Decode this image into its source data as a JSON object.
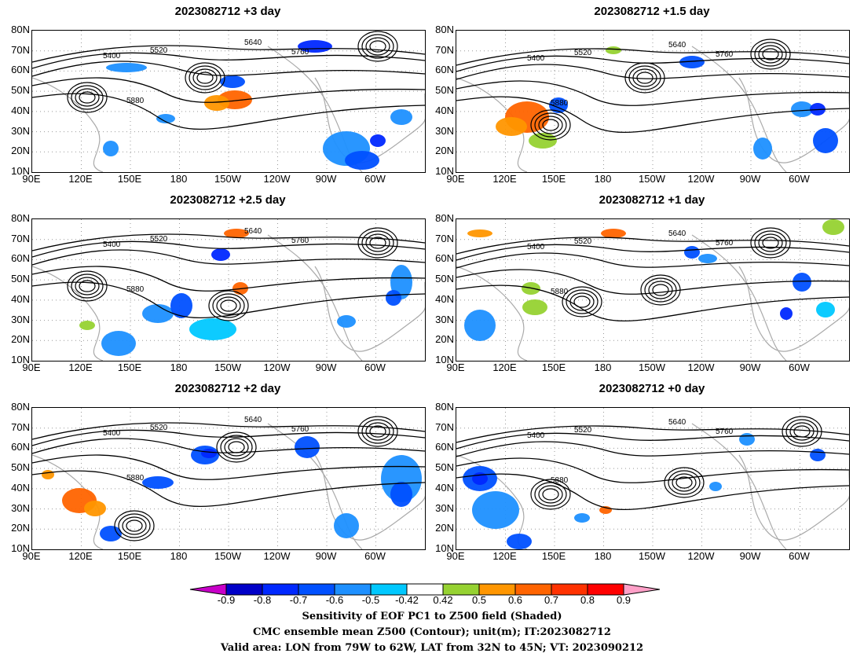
{
  "panels": [
    {
      "title": "2023082712 +3 day"
    },
    {
      "title": "2023082712 +1.5 day"
    },
    {
      "title": "2023082712 +2.5 day"
    },
    {
      "title": "2023082712 +1 day"
    },
    {
      "title": "2023082712 +2 day"
    },
    {
      "title": "2023082712 +0 day"
    }
  ],
  "axes": {
    "lat_labels": [
      "80N",
      "70N",
      "60N",
      "50N",
      "40N",
      "30N",
      "20N",
      "10N"
    ],
    "lon_labels": [
      "90E",
      "120E",
      "150E",
      "180",
      "150W",
      "120W",
      "90W",
      "60W"
    ]
  },
  "contour_levels": [
    "5400",
    "5520",
    "5640",
    "5760",
    "5880"
  ],
  "colorbar": {
    "labels": [
      "-0.9",
      "-0.8",
      "-0.7",
      "-0.6",
      "-0.5",
      "-0.42",
      "0.42",
      "0.5",
      "0.6",
      "0.7",
      "0.8",
      "0.9"
    ],
    "colors": [
      "#c800c8",
      "#0000c8",
      "#0028ff",
      "#0050ff",
      "#1e90ff",
      "#00c8ff",
      "#ffffff",
      "#96d232",
      "#ff9600",
      "#ff6400",
      "#ff3200",
      "#ff0000",
      "#ffa0c8"
    ]
  },
  "caption": {
    "line1": "Sensitivity of EOF PC1 to Z500 field (Shaded)",
    "line2": "CMC ensemble mean Z500 (Contour); unit(m); IT:2023082712",
    "line3": "Valid area: LON from 79W to 62W, LAT from 32N to 45N; VT: 2023090212"
  }
}
